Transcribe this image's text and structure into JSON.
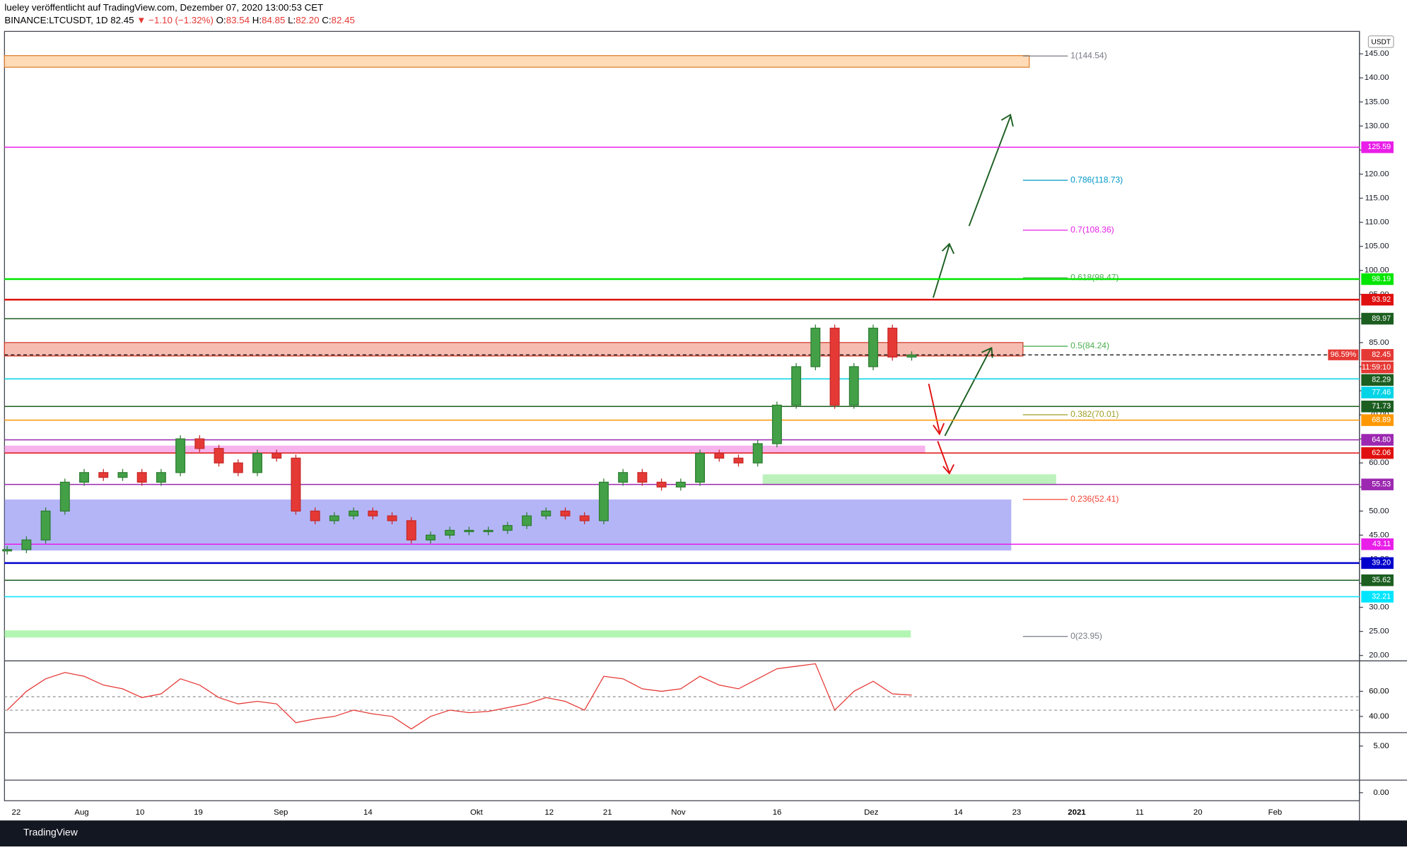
{
  "header": {
    "author_line": "lueley veröffentlicht auf TradingView.com, Dezember 07, 2020 13:00:53 CET",
    "symbol": "BINANCE:LTCUSDT, 1D",
    "last": 82.45,
    "change": "▼ −1.10 (−1.32%)",
    "ohlc": [
      {
        "key": "O:",
        "value": 83.54
      },
      {
        "key": "H:",
        "value": 84.85
      },
      {
        "key": "L:",
        "value": 82.2,
        "label": "82.20"
      },
      {
        "key": "C:",
        "value": 82.45
      }
    ]
  },
  "footer": {
    "brand": "TradingView"
  },
  "chart_data": {
    "type": "candlestick",
    "currency": "USDT",
    "ylim": [
      18.88,
      149.66
    ],
    "yticks": [
      {
        "value": 20,
        "label": "20.00"
      },
      {
        "value": 25,
        "label": "25.00"
      },
      {
        "value": 30,
        "label": "30.00"
      },
      {
        "value": 35,
        "label": "35.00"
      },
      {
        "value": 40,
        "label": "40.00"
      },
      {
        "value": 45,
        "label": "45.00"
      },
      {
        "value": 50,
        "label": "50.00"
      },
      {
        "value": 55,
        "label": "55.00"
      },
      {
        "value": 60,
        "label": "60.00"
      },
      {
        "value": 65,
        "label": "65.00"
      },
      {
        "value": 70,
        "label": "70.00"
      },
      {
        "value": 75,
        "label": "75.00"
      },
      {
        "value": 80,
        "label": "80.00"
      },
      {
        "value": 85,
        "label": "85.00"
      },
      {
        "value": 90,
        "label": "90.00"
      },
      {
        "value": 95,
        "label": "95.00"
      },
      {
        "value": 100,
        "label": "100.00"
      },
      {
        "value": 105,
        "label": "105.00"
      },
      {
        "value": 110,
        "label": "110.00"
      },
      {
        "value": 115,
        "label": "115.00"
      },
      {
        "value": 120,
        "label": "120.00"
      },
      {
        "value": 125,
        "label": "125.00"
      },
      {
        "value": 130,
        "label": "130.00"
      },
      {
        "value": 135,
        "label": "135.00"
      },
      {
        "value": 140,
        "label": "140.00"
      },
      {
        "value": 145,
        "label": "145.00"
      }
    ],
    "x_labels": [
      "22",
      "Aug",
      "10",
      "19",
      "Sep",
      "14",
      "Okt",
      "12",
      "21",
      "Nov",
      "16",
      "Dez",
      "14",
      "23",
      "2021",
      "11",
      "20",
      "Feb"
    ],
    "closes": [
      42,
      44,
      50,
      56,
      58,
      57,
      58,
      56,
      58,
      65,
      63,
      60,
      58,
      62,
      61,
      50,
      48,
      49,
      50,
      49,
      48,
      44,
      45,
      46,
      46,
      46,
      47,
      49,
      50,
      49,
      48,
      56,
      58,
      56,
      55,
      56,
      62,
      61,
      60,
      64,
      72,
      80,
      88,
      72,
      80,
      88,
      82,
      82.45
    ],
    "levels": {
      "values": [
        125.59,
        98.19,
        93.92,
        89.97,
        77.46,
        71.73,
        68.89,
        64.8,
        62.06,
        55.53,
        43.11,
        39.2,
        35.62,
        32.21
      ],
      "value_labels": [
        "125.59",
        "98.19",
        "93.92",
        "89.97",
        "77.46",
        "71.73",
        "68.89",
        "64.80",
        "62.06",
        "55.53",
        "43.11",
        "39.20",
        "35.62",
        "32.21"
      ],
      "colors": [
        "#e91ee9",
        "#00e600",
        "#e01010",
        "#1b5e20",
        "#00d4e6",
        "#1b5e20",
        "#ff9800",
        "#9c27b0",
        "#e01010",
        "#9c27b0",
        "#e91ee9",
        "#0000cc",
        "#1b5e20",
        "#00e5ff"
      ]
    },
    "price_label": {
      "percent": "96.59%",
      "value": 82.45,
      "timer": "11:59:10",
      "ma_value": 82.29
    },
    "fibs": [
      {
        "label": "1(144.54)",
        "value": 144.54,
        "color": "#787b86"
      },
      {
        "label": "0.786(118.73)",
        "value": 118.73,
        "color": "#0097c7"
      },
      {
        "label": "0.7(108.36)",
        "value": 108.36,
        "color": "#e91ee9"
      },
      {
        "label": "0.618(98.47)",
        "value": 98.47,
        "color": "#4caf50"
      },
      {
        "label": "0.5(84.24)",
        "value": 84.24,
        "color": "#4caf50"
      },
      {
        "label": "0.382(70.01)",
        "value": 70.01,
        "color": "#9e9d24"
      },
      {
        "label": "0.236(52.41)",
        "value": 52.41,
        "color": "#f44336"
      },
      {
        "label": "0(23.95)",
        "value": 23.95,
        "color": "#787b86"
      }
    ],
    "rsi": {
      "ylim": [
        27.1,
        84.3
      ],
      "yticks": [
        {
          "value": 60,
          "label": "60.00"
        },
        {
          "value": 40,
          "label": "40.00"
        }
      ],
      "values": [
        45,
        60,
        70,
        75,
        72,
        65,
        62,
        55,
        58,
        70,
        65,
        55,
        50,
        52,
        50,
        35,
        38,
        40,
        45,
        42,
        40,
        30,
        40,
        45,
        43,
        44,
        47,
        50,
        55,
        52,
        45,
        72,
        70,
        62,
        60,
        62,
        72,
        65,
        62,
        70,
        78,
        80,
        82,
        45,
        60,
        68,
        58,
        57
      ]
    },
    "macd_ticks": [
      {
        "value": 5,
        "label": "5.00"
      }
    ],
    "osc_ticks": [
      {
        "value": 0,
        "label": "0.00"
      }
    ]
  }
}
